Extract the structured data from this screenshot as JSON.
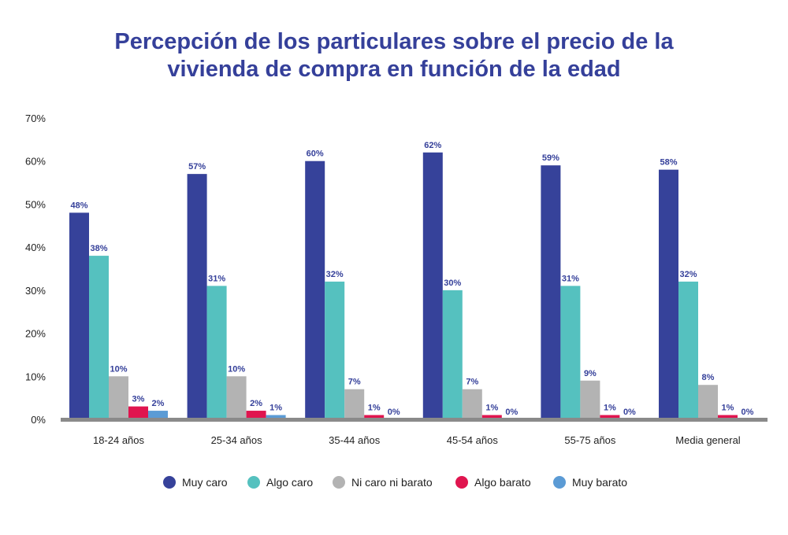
{
  "chart_data": {
    "type": "bar",
    "title_lines": [
      "Percepción de los particulares sobre el precio de la",
      "vivienda de compra en función de la edad"
    ],
    "categories": [
      "18-24 años",
      "25-34 años",
      "35-44 años",
      "45-54 años",
      "55-75 años",
      "Media general"
    ],
    "ylim": [
      0,
      70
    ],
    "yticks": [
      {
        "value": 0,
        "label": "0%"
      },
      {
        "value": 10,
        "label": "10%"
      },
      {
        "value": 20,
        "label": "20%"
      },
      {
        "value": 30,
        "label": "30%"
      },
      {
        "value": 40,
        "label": "40%"
      },
      {
        "value": 50,
        "label": "50%"
      },
      {
        "value": 60,
        "label": "60%"
      },
      {
        "value": 70,
        "label": "70%"
      }
    ],
    "grid": false,
    "legend_position": "bottom",
    "series": [
      {
        "name": "Muy caro",
        "color": "#36429a",
        "values": [
          48,
          57,
          60,
          62,
          59,
          58
        ],
        "labels": [
          "48%",
          "57%",
          "60%",
          "62%",
          "59%",
          "58%"
        ]
      },
      {
        "name": "Algo caro",
        "color": "#55c1bf",
        "values": [
          38,
          31,
          32,
          30,
          31,
          32
        ],
        "labels": [
          "38%",
          "31%",
          "32%",
          "30%",
          "31%",
          "32%"
        ]
      },
      {
        "name": "Ni caro ni barato",
        "color": "#b3b3b3",
        "values": [
          10,
          10,
          7,
          7,
          9,
          8
        ],
        "labels": [
          "10%",
          "10%",
          "7%",
          "7%",
          "9%",
          "8%"
        ]
      },
      {
        "name": "Algo barato",
        "color": "#e0154f",
        "values": [
          3,
          2,
          1,
          1,
          1,
          1
        ],
        "labels": [
          "3%",
          "2%",
          "1%",
          "1%",
          "1%",
          "1%"
        ]
      },
      {
        "name": "Muy barato",
        "color": "#5b9bd5",
        "values": [
          2,
          1,
          0,
          0,
          0,
          0
        ],
        "labels": [
          "2%",
          "1%",
          "0%",
          "0%",
          "0%",
          "0%"
        ]
      }
    ]
  }
}
